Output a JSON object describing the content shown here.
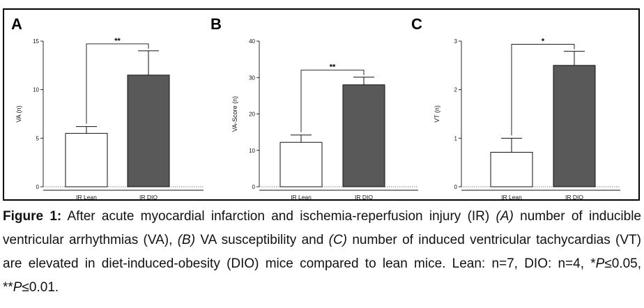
{
  "chart_data": [
    {
      "type": "bar",
      "panel": "A",
      "categories": [
        "IR Lean",
        "IR DIO"
      ],
      "values": [
        5.5,
        11.5
      ],
      "errors": [
        0.7,
        2.5
      ],
      "colors": [
        "#ffffff",
        "#595959"
      ],
      "ylabel": "VA (n)",
      "ylim": [
        0,
        15
      ],
      "yticks": [
        0,
        5,
        10,
        15
      ],
      "significance": "**"
    },
    {
      "type": "bar",
      "panel": "B",
      "categories": [
        "IR Lean",
        "IR DIO"
      ],
      "values": [
        12.2,
        28.0
      ],
      "errors": [
        2.0,
        2.1
      ],
      "colors": [
        "#ffffff",
        "#595959"
      ],
      "ylabel": "VA-Score (n)",
      "ylim": [
        0,
        40
      ],
      "yticks": [
        0,
        10,
        20,
        30,
        40
      ],
      "significance": "**"
    },
    {
      "type": "bar",
      "panel": "C",
      "categories": [
        "IR Lean",
        "IR DIO"
      ],
      "values": [
        0.71,
        2.5
      ],
      "errors": [
        0.29,
        0.29
      ],
      "colors": [
        "#ffffff",
        "#595959"
      ],
      "ylabel": "VT (n)",
      "ylim": [
        0,
        3
      ],
      "yticks": [
        0,
        1,
        2,
        3
      ],
      "significance": "*"
    }
  ],
  "caption": {
    "label": "Figure 1:",
    "part1": " After acute myocardial infarction and ischemia-reperfusion injury (IR) ",
    "markA": "(A)",
    "part2": " number of inducible ventricular arrhythmias (VA), ",
    "markB": "(B)",
    "part3": " VA susceptibility and ",
    "markC": "(C)",
    "part4": " number of induced ventricular tachycardias (VT) are elevated in diet-induced-obesity (DIO) mice compared to lean mice. Lean: n=7, DIO: n=4, *",
    "p1": "P",
    "part5": "≤0.05, **",
    "p2": "P",
    "part6": "≤0.01."
  }
}
